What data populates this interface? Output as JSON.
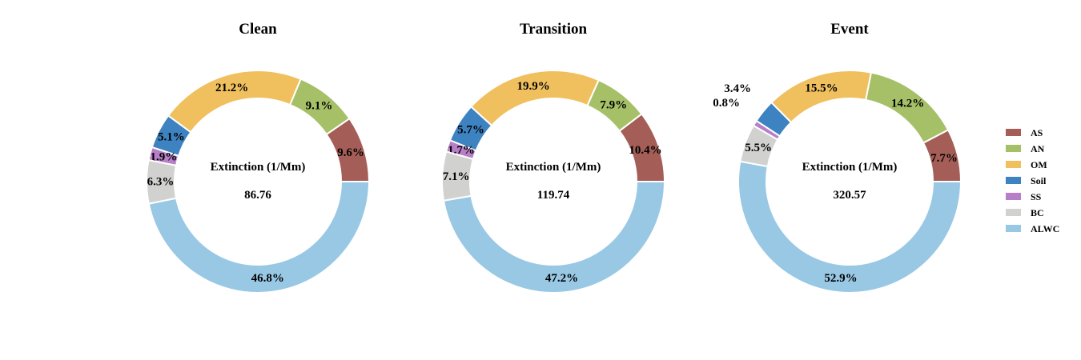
{
  "chart_data": [
    {
      "type": "pie",
      "title": "Clean",
      "center_label": "Extinction (1/Mm)",
      "center_value": "86.76",
      "categories": [
        "AS",
        "AN",
        "OM",
        "Soil",
        "SS",
        "BC",
        "ALWC"
      ],
      "values": [
        9.6,
        9.1,
        21.2,
        5.1,
        1.9,
        6.3,
        46.8
      ],
      "labels": [
        "9.6%",
        "9.1%",
        "21.2%",
        "5.1%",
        "1.9%",
        "6.3%",
        "46.8%"
      ]
    },
    {
      "type": "pie",
      "title": "Transition",
      "center_label": "Extinction (1/Mm)",
      "center_value": "119.74",
      "categories": [
        "AS",
        "AN",
        "OM",
        "Soil",
        "SS",
        "BC",
        "ALWC"
      ],
      "values": [
        10.4,
        7.9,
        19.9,
        5.7,
        1.7,
        7.1,
        47.2
      ],
      "labels": [
        "10.4%",
        "7.9%",
        "19.9%",
        "5.7%",
        "1.7%",
        "7.1%",
        "47.2%"
      ]
    },
    {
      "type": "pie",
      "title": "Event",
      "center_label": "Extinction (1/Mm)",
      "center_value": "320.57",
      "categories": [
        "AS",
        "AN",
        "OM",
        "Soil",
        "SS",
        "BC",
        "ALWC"
      ],
      "values": [
        7.7,
        14.2,
        15.5,
        3.4,
        0.8,
        5.5,
        52.9
      ],
      "labels": [
        "7.7%",
        "14.2%",
        "15.5%",
        "3.4%",
        "0.8%",
        "5.5%",
        "52.9%"
      ]
    }
  ],
  "legend": {
    "placement": "right",
    "items": [
      {
        "label": "AS",
        "color": "#a45e57"
      },
      {
        "label": "AN",
        "color": "#a6c067"
      },
      {
        "label": "OM",
        "color": "#f0c05f"
      },
      {
        "label": "Soil",
        "color": "#3e83c1"
      },
      {
        "label": "SS",
        "color": "#b77fc7"
      },
      {
        "label": "BC",
        "color": "#d1d1cf"
      },
      {
        "label": "ALWC",
        "color": "#99c8e5"
      }
    ]
  }
}
